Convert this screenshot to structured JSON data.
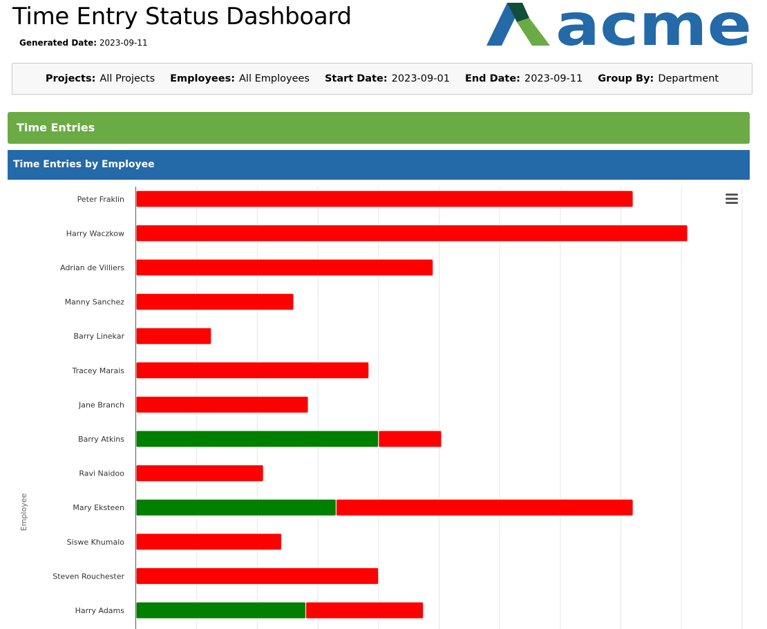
{
  "header": {
    "title": "Time Entry Status Dashboard",
    "generated_label": "Generated Date:",
    "generated_value": "2023-09-11"
  },
  "logo": {
    "text": "acme",
    "color_primary": "#2469a8",
    "color_green": "#6aab45",
    "color_dark": "#124d3a"
  },
  "filters": [
    {
      "label": "Projects:",
      "value": "All Projects"
    },
    {
      "label": "Employees:",
      "value": "All Employees"
    },
    {
      "label": "Start Date:",
      "value": "2023-09-01"
    },
    {
      "label": "End Date:",
      "value": "2023-09-11"
    },
    {
      "label": "Group By:",
      "value": "Department"
    }
  ],
  "sections": {
    "time_entries": "Time Entries",
    "by_employee": "Time Entries by Employee"
  },
  "colors": {
    "approved": "#008000",
    "pending": "#ff0000",
    "grid": "#e6e6e6"
  },
  "chart_data": {
    "type": "bar",
    "orientation": "horizontal",
    "stacked": true,
    "ylabel": "Employee",
    "xlim": [
      0,
      50
    ],
    "grid": true,
    "categories": [
      "Peter Fraklin",
      "Harry Waczkow",
      "Adrian de Villiers",
      "Manny Sanchez",
      "Barry Linekar",
      "Tracey Marais",
      "Jane Branch",
      "Barry Atkins",
      "Ravi Naidoo",
      "Mary Eksteen",
      "Siswe Khumalo",
      "Steven Rouchester",
      "Harry Adams"
    ],
    "series": [
      {
        "values": [
          0,
          0,
          0,
          0,
          0,
          0,
          0,
          20,
          0,
          16.5,
          0,
          0,
          14
        ]
      },
      {
        "values": [
          41,
          45.5,
          24.5,
          13,
          6.2,
          19.2,
          14.2,
          5.2,
          10.5,
          24.5,
          12,
          20,
          9.7
        ]
      }
    ]
  }
}
